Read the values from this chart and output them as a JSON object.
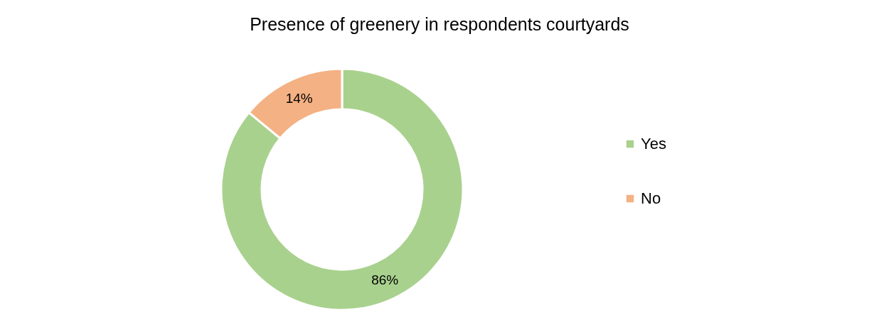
{
  "chart_data": {
    "type": "donut",
    "title": "Presence of greenery in respondents courtyards",
    "categories": [
      "Yes",
      "No"
    ],
    "values": [
      86,
      14
    ],
    "colors": [
      "#a9d18e",
      "#f4b183"
    ],
    "value_labels": [
      "86%",
      "14%"
    ],
    "legend": "right"
  }
}
